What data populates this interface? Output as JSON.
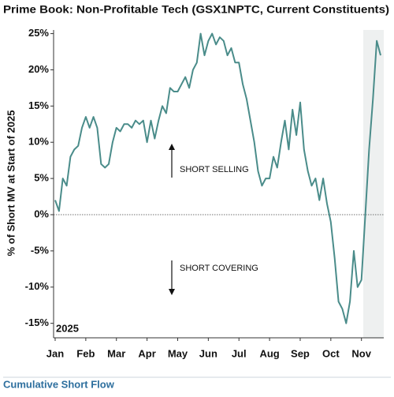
{
  "chart_data": {
    "type": "line",
    "title": "Prime Book: Non-Profitable Tech (GSX1NPTC, Current Constituents)",
    "y_label": "% of Short MV at Start of 2025",
    "footer": "Cumulative Short Flow",
    "year_label": "2025",
    "annotations": [
      "SHORT SELLING",
      "SHORT COVERING"
    ],
    "categories": [
      "Jan",
      null,
      null,
      null,
      null,
      null,
      null,
      null,
      "Feb",
      null,
      null,
      null,
      null,
      null,
      null,
      null,
      "Mar",
      null,
      null,
      null,
      null,
      null,
      null,
      null,
      "Apr",
      null,
      null,
      null,
      null,
      null,
      null,
      null,
      "May",
      null,
      null,
      null,
      null,
      null,
      null,
      null,
      "Jun",
      null,
      null,
      null,
      null,
      null,
      null,
      null,
      "Jul",
      null,
      null,
      null,
      null,
      null,
      null,
      null,
      "Aug",
      null,
      null,
      null,
      null,
      null,
      null,
      null,
      "Sep",
      null,
      null,
      null,
      null,
      null,
      null,
      null,
      "Oct",
      null,
      null,
      null,
      null,
      null,
      null,
      null,
      "Nov",
      null,
      null,
      null,
      null,
      null
    ],
    "series": [
      {
        "name": "Cumulative Short Flow",
        "color": "#4a8c8a",
        "values": [
          2,
          0.5,
          5,
          4,
          8,
          9,
          9.5,
          12,
          13.5,
          12,
          13.5,
          12,
          7,
          6.5,
          7,
          10,
          12,
          11.5,
          12.5,
          12.5,
          12,
          13,
          12.5,
          13,
          10,
          13,
          10.5,
          13,
          15,
          14,
          17.5,
          17,
          17,
          18,
          19,
          17.5,
          20,
          21,
          25,
          22,
          24,
          25,
          23.5,
          24.5,
          24,
          22,
          23,
          21,
          21,
          18,
          16,
          13,
          10,
          6,
          4,
          5,
          5,
          8,
          6.5,
          10,
          13,
          9,
          14.5,
          11,
          15.5,
          9,
          6,
          4,
          5,
          2,
          5,
          1.5,
          -1,
          -6,
          -12,
          -13,
          -15,
          -12,
          -5,
          -10,
          -9,
          0,
          9,
          16,
          24,
          22
        ]
      }
    ],
    "ylim": [
      -17,
      25.5
    ],
    "yticks": [
      {
        "value": -15,
        "label": "-15%"
      },
      {
        "value": -10,
        "label": "-10%"
      },
      {
        "value": -5,
        "label": "-5%"
      },
      {
        "value": 0,
        "label": "0%"
      },
      {
        "value": 5,
        "label": "5%"
      },
      {
        "value": 10,
        "label": "10%"
      },
      {
        "value": 15,
        "label": "15%"
      },
      {
        "value": 20,
        "label": "20%"
      },
      {
        "value": 25,
        "label": "25%"
      }
    ],
    "grid": false,
    "zero_line": true
  }
}
